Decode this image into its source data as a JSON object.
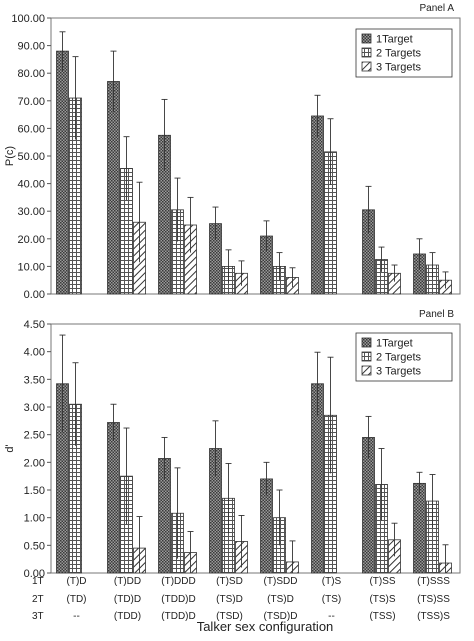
{
  "chart_data": [
    {
      "type": "bar",
      "panel_label": "Panel A",
      "ylabel": "P(c)",
      "ylim": [
        0,
        100
      ],
      "yticks": [
        "0.00",
        "10.00",
        "20.00",
        "30.00",
        "40.00",
        "50.00",
        "60.00",
        "70.00",
        "80.00",
        "90.00",
        "100.00"
      ],
      "legend_position": "top-right",
      "series": [
        {
          "name": "1Target",
          "pattern": "dots",
          "values": [
            88,
            77,
            57.5,
            25.5,
            21,
            64.5,
            30.5,
            14.5
          ],
          "errors": [
            7,
            11,
            13,
            6,
            5.5,
            7.5,
            8.5,
            5.5
          ]
        },
        {
          "name": "2 Targets",
          "pattern": "grid",
          "values": [
            71,
            45.5,
            30.5,
            10,
            10,
            51.5,
            12.5,
            10.5
          ],
          "errors": [
            15,
            11.5,
            11.5,
            6,
            5,
            12,
            4.5,
            4.5
          ]
        },
        {
          "name": "3 Targets",
          "pattern": "hatch",
          "values": [
            null,
            26,
            25,
            7.5,
            6,
            null,
            7.5,
            5
          ],
          "errors": [
            0,
            14.5,
            10,
            4.5,
            3.5,
            0,
            3,
            3
          ]
        }
      ]
    },
    {
      "type": "bar",
      "panel_label": "Panel B",
      "ylabel": "d'",
      "ylim": [
        0,
        4.5
      ],
      "yticks": [
        "0.00",
        "0.50",
        "1.00",
        "1.50",
        "2.00",
        "2.50",
        "3.00",
        "3.50",
        "4.00",
        "4.50"
      ],
      "legend_position": "top-right",
      "series": [
        {
          "name": "1Target",
          "pattern": "dots",
          "values": [
            3.42,
            2.72,
            2.07,
            2.25,
            1.7,
            3.42,
            2.45,
            1.62
          ],
          "errors": [
            0.88,
            0.33,
            0.38,
            0.5,
            0.3,
            0.57,
            0.38,
            0.2
          ]
        },
        {
          "name": "2 Targets",
          "pattern": "grid",
          "values": [
            3.05,
            1.75,
            1.08,
            1.35,
            1.0,
            2.85,
            1.6,
            1.3
          ],
          "errors": [
            0.75,
            0.87,
            0.82,
            0.63,
            0.5,
            1.05,
            0.65,
            0.48
          ]
        },
        {
          "name": "3 Targets",
          "pattern": "hatch",
          "values": [
            null,
            0.45,
            0.37,
            0.57,
            0.2,
            null,
            0.6,
            0.18
          ],
          "errors": [
            0,
            0.57,
            0.38,
            0.47,
            0.38,
            0,
            0.3,
            0.33
          ]
        }
      ]
    }
  ],
  "configurations": {
    "row_labels": [
      "1T",
      "2T",
      "3T"
    ],
    "columns": [
      [
        "(T)D",
        "(TD)",
        "--"
      ],
      [
        "(T)DD",
        "(TD)D",
        "(TDD)"
      ],
      [
        "(T)DDD",
        "(TDD)D",
        "(TDD)D"
      ],
      [
        "(T)SD",
        "(TS)D",
        "(TSD)"
      ],
      [
        "(T)SDD",
        "(TS)D",
        "(TSD)D"
      ],
      [
        "(T)S",
        "(TS)",
        "--"
      ],
      [
        "(T)SS",
        "(TS)S",
        "(TSS)"
      ],
      [
        "(T)SSS",
        "(TS)SS",
        "(TSS)S"
      ]
    ]
  },
  "xlabel": "Talker sex configuration",
  "colors": {
    "bar_fill": "#ffffff",
    "bar_stroke": "#333333",
    "axis": "#555555",
    "grid": "#ffffff"
  }
}
